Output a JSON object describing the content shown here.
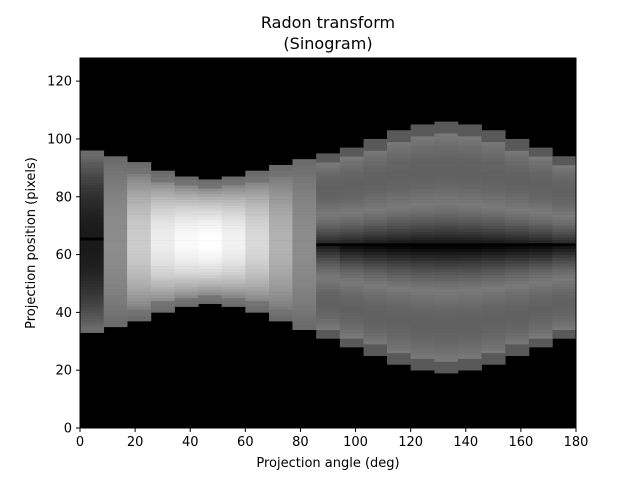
{
  "chart_data": {
    "type": "heatmap",
    "title": "Radon transform",
    "subtitle": "(Sinogram)",
    "xlabel": "Projection angle (deg)",
    "ylabel": "Projection position (pixels)",
    "xlim": [
      0,
      180
    ],
    "ylim": [
      0,
      128
    ],
    "x_ticks": [
      0,
      20,
      40,
      60,
      80,
      100,
      120,
      140,
      160,
      180
    ],
    "y_ticks": [
      0,
      20,
      40,
      60,
      80,
      100,
      120
    ],
    "colormap": "gray",
    "grid": false,
    "legend": "none",
    "angle_columns": [
      {
        "x": [
          0,
          8.6
        ],
        "lo": 33,
        "hi": 96,
        "peak": 65,
        "mid": 0.1
      },
      {
        "x": [
          8.6,
          17.1
        ],
        "lo": 35,
        "hi": 94,
        "peak": 64,
        "mid": 0.55
      },
      {
        "x": [
          17.1,
          25.7
        ],
        "lo": 37,
        "hi": 92,
        "peak": 64,
        "mid": 0.8
      },
      {
        "x": [
          25.7,
          34.3
        ],
        "lo": 40,
        "hi": 89,
        "peak": 64,
        "mid": 0.93
      },
      {
        "x": [
          34.3,
          42.9
        ],
        "lo": 42,
        "hi": 87,
        "peak": 64,
        "mid": 0.98
      },
      {
        "x": [
          42.9,
          51.4
        ],
        "lo": 43,
        "hi": 86,
        "peak": 64,
        "mid": 1.0
      },
      {
        "x": [
          51.4,
          60.0
        ],
        "lo": 42,
        "hi": 87,
        "peak": 64,
        "mid": 0.95
      },
      {
        "x": [
          60.0,
          68.6
        ],
        "lo": 40,
        "hi": 89,
        "peak": 64,
        "mid": 0.85
      },
      {
        "x": [
          68.6,
          77.1
        ],
        "lo": 37,
        "hi": 91,
        "peak": 63,
        "mid": 0.7
      },
      {
        "x": [
          77.1,
          85.7
        ],
        "lo": 34,
        "hi": 93,
        "peak": 63,
        "mid": 0.55
      },
      {
        "x": [
          85.7,
          94.3
        ],
        "lo": 31,
        "hi": 95,
        "peak": 63,
        "mid": 0.1
      },
      {
        "x": [
          94.3,
          102.9
        ],
        "lo": 28,
        "hi": 97,
        "peak": 63,
        "mid": 0.06
      },
      {
        "x": [
          102.9,
          111.4
        ],
        "lo": 25,
        "hi": 100,
        "peak": 63,
        "mid": 0.04
      },
      {
        "x": [
          111.4,
          120.0
        ],
        "lo": 22,
        "hi": 103,
        "peak": 63,
        "mid": 0.03
      },
      {
        "x": [
          120.0,
          128.6
        ],
        "lo": 20,
        "hi": 105,
        "peak": 63,
        "mid": 0.02
      },
      {
        "x": [
          128.6,
          137.1
        ],
        "lo": 19,
        "hi": 106,
        "peak": 63,
        "mid": 0.02
      },
      {
        "x": [
          137.1,
          145.7
        ],
        "lo": 20,
        "hi": 105,
        "peak": 63,
        "mid": 0.02
      },
      {
        "x": [
          145.7,
          154.3
        ],
        "lo": 22,
        "hi": 103,
        "peak": 63,
        "mid": 0.03
      },
      {
        "x": [
          154.3,
          162.9
        ],
        "lo": 25,
        "hi": 100,
        "peak": 63,
        "mid": 0.04
      },
      {
        "x": [
          162.9,
          171.4
        ],
        "lo": 28,
        "hi": 97,
        "peak": 63,
        "mid": 0.05
      },
      {
        "x": [
          171.4,
          180.0
        ],
        "lo": 31,
        "hi": 94,
        "peak": 63,
        "mid": 0.08
      }
    ],
    "background_color": "#000000"
  }
}
